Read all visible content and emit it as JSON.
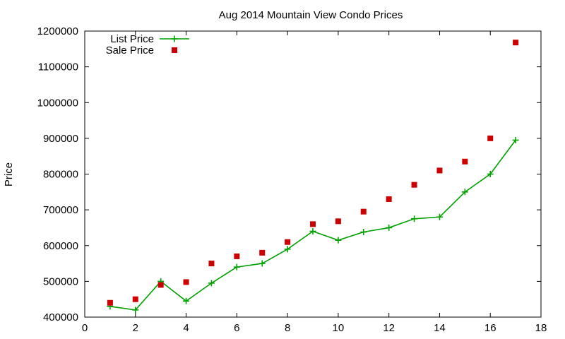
{
  "chart_data": {
    "type": "line",
    "title": "Aug 2014 Mountain View Condo Prices",
    "xlabel": "",
    "ylabel": "Price",
    "xlim": [
      0,
      18
    ],
    "ylim": [
      400000,
      1200000
    ],
    "xticks": [
      0,
      2,
      4,
      6,
      8,
      10,
      12,
      14,
      16,
      18
    ],
    "yticks": [
      400000,
      500000,
      600000,
      700000,
      800000,
      900000,
      1000000,
      1100000,
      1200000
    ],
    "grid": false,
    "legend_position": "top-left",
    "series": [
      {
        "name": "List Price",
        "style": "line+cross",
        "color": "#00a000",
        "x": [
          1,
          2,
          3,
          4,
          5,
          6,
          7,
          8,
          9,
          10,
          11,
          12,
          13,
          14,
          15,
          16,
          17
        ],
        "y": [
          430000,
          420000,
          500000,
          445000,
          495000,
          540000,
          550000,
          590000,
          640000,
          615000,
          638000,
          650000,
          675000,
          680000,
          750000,
          800000,
          895000
        ]
      },
      {
        "name": "Sale Price",
        "style": "square-marker",
        "color": "#cc0000",
        "x": [
          1,
          2,
          3,
          4,
          5,
          6,
          7,
          8,
          9,
          10,
          11,
          12,
          13,
          14,
          15,
          16,
          17
        ],
        "y": [
          440000,
          450000,
          490000,
          498000,
          550000,
          570000,
          580000,
          610000,
          660000,
          668000,
          695000,
          730000,
          770000,
          810000,
          835000,
          900000,
          1168000
        ]
      }
    ]
  }
}
